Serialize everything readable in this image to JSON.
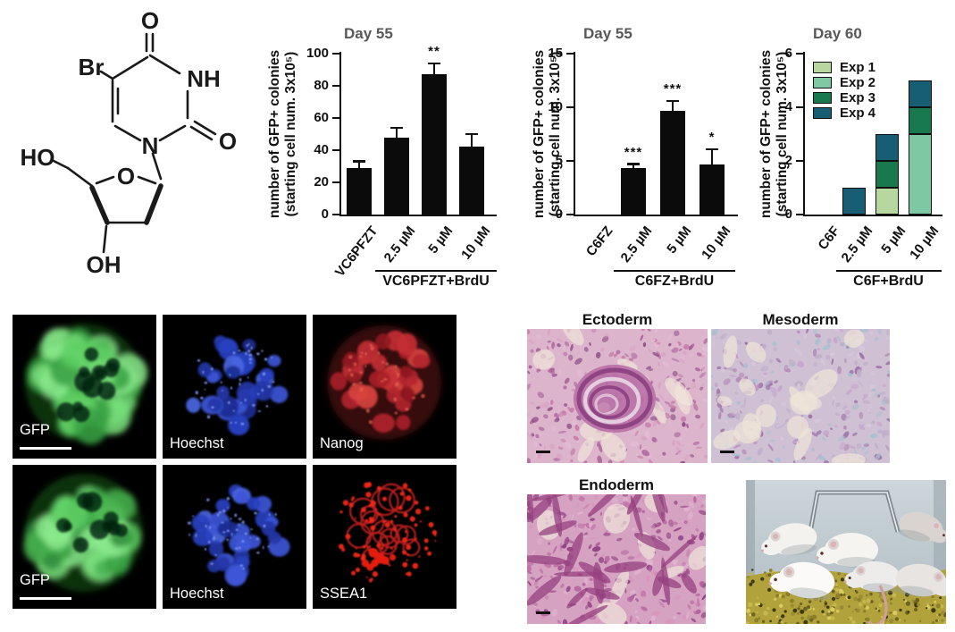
{
  "molecule": {
    "labels": {
      "br": "Br",
      "o_top": "O",
      "nh": "NH",
      "o_right": "O",
      "n1": "N",
      "ho": "HO",
      "o_ring": "O",
      "oh": "OH"
    }
  },
  "chart_data": [
    {
      "type": "bar",
      "title": "Day 55",
      "ylabel_line1": "number of GFP+ colonies",
      "ylabel_line2": "(starting cell num. 3x10⁵)",
      "categories": [
        "VC6PFZT",
        "2.5 µM",
        "5 µM",
        "10 µM"
      ],
      "values": [
        29,
        48,
        87,
        42
      ],
      "errors": [
        4,
        6,
        7,
        8
      ],
      "significance": [
        "",
        "",
        "**",
        ""
      ],
      "yticks": [
        0,
        20,
        40,
        60,
        80,
        100
      ],
      "ylim": [
        0,
        100
      ],
      "grid": false,
      "legend_position": "none",
      "bar_color": "#0b0b0b",
      "group_label": "VC6PFZT+BrdU",
      "group_span": [
        1,
        3
      ]
    },
    {
      "type": "bar",
      "title": "Day 55",
      "ylabel_line1": "number of GFP+ colonies",
      "ylabel_line2": "(starting cell num. 3x10⁵)",
      "categories": [
        "C6FZ",
        "2.5 µM",
        "5 µM",
        "10 µM"
      ],
      "values": [
        0,
        4.3,
        9.7,
        4.7
      ],
      "errors": [
        0,
        0.4,
        0.9,
        1.4
      ],
      "significance": [
        "",
        "***",
        "***",
        "*"
      ],
      "yticks": [
        0,
        5,
        10,
        15
      ],
      "ylim": [
        0,
        15
      ],
      "grid": false,
      "legend_position": "none",
      "bar_color": "#0b0b0b",
      "group_label": "C6FZ+BrdU",
      "group_span": [
        1,
        3
      ]
    },
    {
      "type": "stacked-bar",
      "title": "Day 60",
      "ylabel_line1": "number of GFP+ colonies",
      "ylabel_line2": "(starting cell num. 3x10⁵)",
      "categories": [
        "C6F",
        "2.5 µM",
        "5 µM",
        "10 µM"
      ],
      "series": [
        {
          "name": "Exp 1",
          "color": "#b6d89e",
          "values": [
            0,
            0,
            1,
            0
          ]
        },
        {
          "name": "Exp 2",
          "color": "#7ec8a4",
          "values": [
            0,
            0,
            0,
            3
          ]
        },
        {
          "name": "Exp 3",
          "color": "#17794d",
          "values": [
            0,
            0,
            1,
            1
          ]
        },
        {
          "name": "Exp 4",
          "color": "#175d74",
          "values": [
            0,
            1,
            1,
            1
          ]
        }
      ],
      "yticks": [
        0,
        2,
        4,
        6
      ],
      "ylim": [
        0,
        6
      ],
      "grid": false,
      "legend_position": "top-left-inside",
      "legend_entries": [
        "Exp 1",
        "Exp 2",
        "Exp 3",
        "Exp 4"
      ],
      "group_label": "C6F+BrdU",
      "group_span": [
        1,
        3
      ]
    }
  ],
  "microscopy": {
    "rows": [
      {
        "panels": [
          {
            "label": "GFP",
            "channel": "green"
          },
          {
            "label": "Hoechst",
            "channel": "blue"
          },
          {
            "label": "Nanog",
            "channel": "red"
          }
        ]
      },
      {
        "panels": [
          {
            "label": "GFP",
            "channel": "green"
          },
          {
            "label": "Hoechst",
            "channel": "blue"
          },
          {
            "label": "SSEA1",
            "channel": "red_punctate"
          }
        ]
      }
    ]
  },
  "histology": {
    "panels": [
      {
        "label": "Ectoderm"
      },
      {
        "label": "Mesoderm"
      },
      {
        "label": "Endoderm"
      }
    ]
  }
}
